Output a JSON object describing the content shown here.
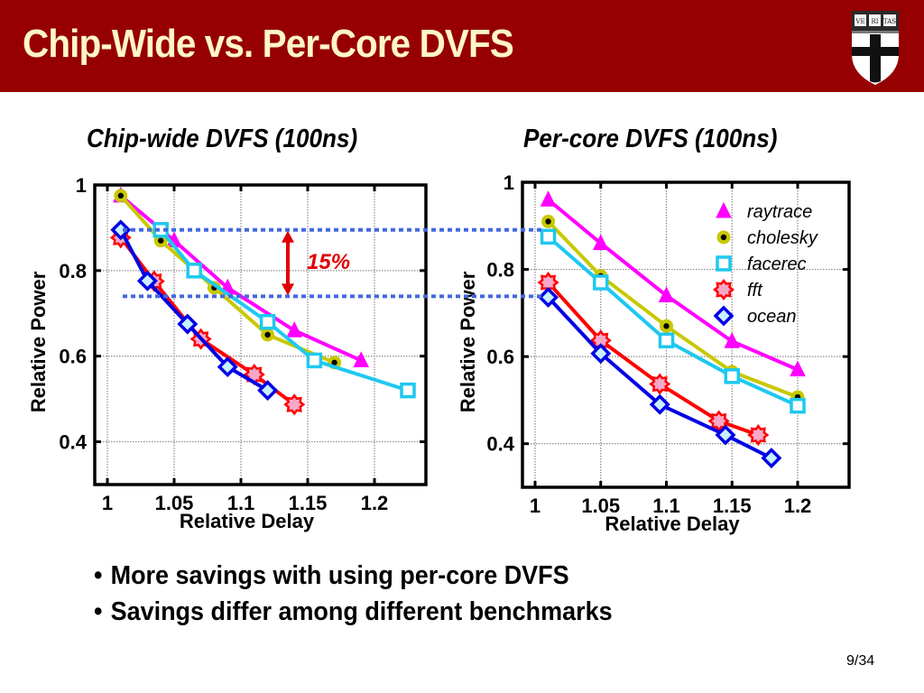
{
  "slide": {
    "title": "Chip-Wide vs. Per-Core DVFS",
    "page_number": "9/34",
    "logo": "harvard-veritas-shield-icon",
    "colors": {
      "header_bg": "#960000",
      "title_text": "#fff6c8"
    },
    "bullets": [
      "More savings with using per-core DVFS",
      "Savings differ among different benchmarks"
    ],
    "bullet_glyph": "•"
  },
  "annotation": {
    "label": "15%",
    "color": "#e00000",
    "reference_line_color": "#4169e1",
    "reference_levels": [
      0.895,
      0.74
    ]
  },
  "chart_data": [
    {
      "type": "line",
      "title": "Chip-wide DVFS (100ns)",
      "xlabel": "Relative Delay",
      "ylabel": "Relative Power",
      "xlim": [
        0.99,
        1.24
      ],
      "ylim": [
        0.3,
        1.0
      ],
      "xticks": [
        1,
        1.05,
        1.1,
        1.15,
        1.2
      ],
      "xtick_labels": [
        "1",
        "1.05",
        "1.1",
        "1.15",
        "1.2"
      ],
      "yticks": [
        0.4,
        0.6,
        0.8,
        1.0
      ],
      "ytick_labels": [
        "0.4",
        "0.6",
        "0.8",
        "1"
      ],
      "grid": true,
      "legend": null,
      "series": [
        {
          "name": "raytrace",
          "color": "#ff00ff",
          "marker": "triangle",
          "x": [
            1.01,
            1.05,
            1.09,
            1.14,
            1.19
          ],
          "y": [
            0.975,
            0.87,
            0.76,
            0.66,
            0.59
          ]
        },
        {
          "name": "cholesky",
          "color": "#c8c800",
          "marker": "circle-dot",
          "x": [
            1.01,
            1.04,
            1.08,
            1.12,
            1.17
          ],
          "y": [
            0.975,
            0.87,
            0.76,
            0.65,
            0.585
          ]
        },
        {
          "name": "facerec",
          "color": "#1ec8f0",
          "marker": "square",
          "x": [
            1.04,
            1.065,
            1.12,
            1.155,
            1.225
          ],
          "y": [
            0.895,
            0.8,
            0.68,
            0.59,
            0.52
          ]
        },
        {
          "name": "fft",
          "color": "#ff0000",
          "marker": "star",
          "x": [
            1.01,
            1.035,
            1.07,
            1.11,
            1.14
          ],
          "y": [
            0.877,
            0.775,
            0.64,
            0.557,
            0.487
          ]
        },
        {
          "name": "ocean",
          "color": "#0000e6",
          "marker": "diamond",
          "x": [
            1.01,
            1.03,
            1.06,
            1.09,
            1.12
          ],
          "y": [
            0.895,
            0.776,
            0.675,
            0.575,
            0.52
          ]
        }
      ]
    },
    {
      "type": "line",
      "title": "Per-core DVFS (100ns)",
      "xlabel": "Relative Delay",
      "ylabel": "Relative Power",
      "xlim": [
        0.99,
        1.24
      ],
      "ylim": [
        0.3,
        1.0
      ],
      "xticks": [
        1,
        1.05,
        1.1,
        1.15,
        1.2
      ],
      "xtick_labels": [
        "1",
        "1.05",
        "1.1",
        "1.15",
        "1.2"
      ],
      "yticks": [
        0.4,
        0.6,
        0.8,
        1.0
      ],
      "ytick_labels": [
        "0.4",
        "0.6",
        "0.8",
        "1"
      ],
      "grid": true,
      "legend": "top-right",
      "series": [
        {
          "name": "raytrace",
          "color": "#ff00ff",
          "marker": "triangle",
          "x": [
            1.01,
            1.05,
            1.1,
            1.15,
            1.2
          ],
          "y": [
            0.96,
            0.86,
            0.74,
            0.635,
            0.57
          ]
        },
        {
          "name": "cholesky",
          "color": "#c8c800",
          "marker": "circle-dot",
          "x": [
            1.01,
            1.05,
            1.1,
            1.15,
            1.2
          ],
          "y": [
            0.91,
            0.785,
            0.67,
            0.565,
            0.507
          ]
        },
        {
          "name": "facerec",
          "color": "#1ec8f0",
          "marker": "square",
          "x": [
            1.01,
            1.05,
            1.1,
            1.15,
            1.2
          ],
          "y": [
            0.875,
            0.77,
            0.637,
            0.555,
            0.487
          ]
        },
        {
          "name": "fft",
          "color": "#ff0000",
          "marker": "star",
          "x": [
            1.01,
            1.05,
            1.095,
            1.14,
            1.17
          ],
          "y": [
            0.77,
            0.637,
            0.537,
            0.452,
            0.42
          ]
        },
        {
          "name": "ocean",
          "color": "#0000e6",
          "marker": "diamond",
          "x": [
            1.01,
            1.05,
            1.095,
            1.145,
            1.18
          ],
          "y": [
            0.736,
            0.607,
            0.49,
            0.42,
            0.367
          ]
        }
      ]
    }
  ]
}
